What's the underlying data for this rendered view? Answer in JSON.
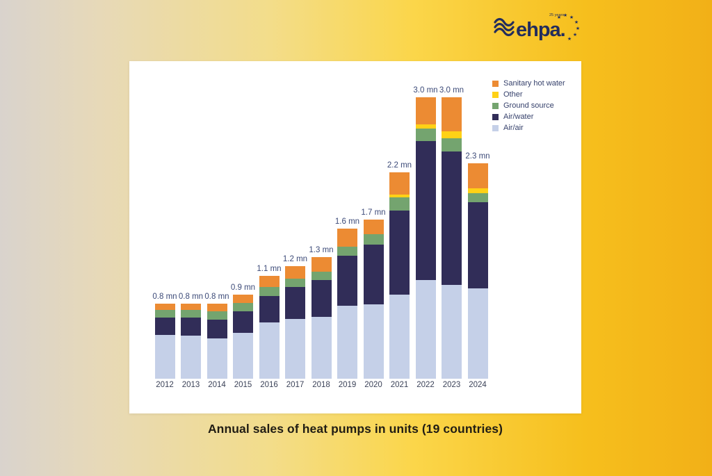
{
  "logo": {
    "brand": "ehpa.",
    "anniversary": "25 years",
    "color": "#232d5c"
  },
  "caption": "Annual sales of heat pumps in units (19 countries)",
  "chart_data": {
    "type": "bar",
    "stacked": true,
    "title": "Annual sales of heat pumps in units (19 countries)",
    "unit": "mn (million units)",
    "grid": false,
    "legend_position": "top-right",
    "ylim": [
      0,
      3.3
    ],
    "categories": [
      "2012",
      "2013",
      "2014",
      "2015",
      "2016",
      "2017",
      "2018",
      "2019",
      "2020",
      "2021",
      "2022",
      "2023",
      "2024"
    ],
    "totals_label": [
      "0.8 mn",
      "0.8 mn",
      "0.8 mn",
      "0.9 mn",
      "1.1 mn",
      "1.2 mn",
      "1.3 mn",
      "1.6 mn",
      "1.7 mn",
      "2.2 mn",
      "3.0 mn",
      "3.0 mn",
      "2.3 mn"
    ],
    "totals_mn": [
      0.8,
      0.8,
      0.8,
      0.9,
      1.1,
      1.2,
      1.3,
      1.6,
      1.7,
      2.2,
      3.0,
      3.0,
      2.3
    ],
    "series": [
      {
        "name": "Air/air",
        "color": "#c5d0e8",
        "values": [
          0.47,
          0.46,
          0.43,
          0.49,
          0.6,
          0.64,
          0.66,
          0.78,
          0.79,
          0.9,
          1.05,
          1.0,
          0.96
        ]
      },
      {
        "name": "Air/water",
        "color": "#312d58",
        "values": [
          0.18,
          0.19,
          0.2,
          0.23,
          0.28,
          0.34,
          0.39,
          0.53,
          0.64,
          0.89,
          1.48,
          1.42,
          0.92
        ]
      },
      {
        "name": "Ground source",
        "color": "#74a46f",
        "values": [
          0.08,
          0.08,
          0.09,
          0.09,
          0.1,
          0.09,
          0.09,
          0.1,
          0.11,
          0.14,
          0.14,
          0.14,
          0.1
        ]
      },
      {
        "name": "Other",
        "color": "#ffd116",
        "values": [
          0.0,
          0.0,
          0.0,
          0.0,
          0.0,
          0.0,
          0.0,
          0.0,
          0.0,
          0.03,
          0.04,
          0.08,
          0.05
        ]
      },
      {
        "name": "Sanitary hot water",
        "color": "#ec8b33",
        "values": [
          0.07,
          0.07,
          0.08,
          0.09,
          0.12,
          0.13,
          0.16,
          0.19,
          0.16,
          0.24,
          0.29,
          0.36,
          0.27
        ]
      }
    ],
    "legend_items": [
      {
        "label": "Sanitary hot water",
        "color": "#ec8b33"
      },
      {
        "label": "Other",
        "color": "#ffd116"
      },
      {
        "label": "Ground source",
        "color": "#74a46f"
      },
      {
        "label": "Air/water",
        "color": "#312d58"
      },
      {
        "label": "Air/air",
        "color": "#c5d0e8"
      }
    ]
  }
}
